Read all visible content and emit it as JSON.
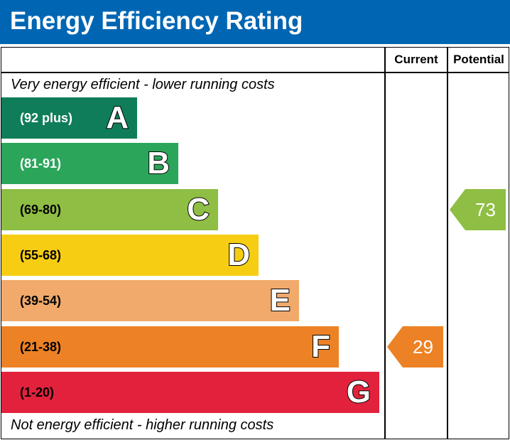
{
  "title": "Energy Efficiency Rating",
  "columns": {
    "current": "Current",
    "potential": "Potential"
  },
  "top_caption": "Very energy efficient - lower running costs",
  "bottom_caption": "Not energy efficient - higher running costs",
  "chart_data": {
    "type": "bar",
    "title": "Energy Efficiency Rating",
    "bands": [
      {
        "letter": "A",
        "range": "(92 plus)",
        "min": 92,
        "max": 100,
        "color": "#0f7d59",
        "range_color": "#ffffff"
      },
      {
        "letter": "B",
        "range": "(81-91)",
        "min": 81,
        "max": 91,
        "color": "#2ba55a",
        "range_color": "#ffffff"
      },
      {
        "letter": "C",
        "range": "(69-80)",
        "min": 69,
        "max": 80,
        "color": "#8fbe44",
        "range_color": "#000000"
      },
      {
        "letter": "D",
        "range": "(55-68)",
        "min": 55,
        "max": 68,
        "color": "#f7cd14",
        "range_color": "#000000"
      },
      {
        "letter": "E",
        "range": "(39-54)",
        "min": 39,
        "max": 54,
        "color": "#f1aa6b",
        "range_color": "#000000"
      },
      {
        "letter": "F",
        "range": "(21-38)",
        "min": 21,
        "max": 38,
        "color": "#ec8225",
        "range_color": "#000000"
      },
      {
        "letter": "G",
        "range": "(1-20)",
        "min": 1,
        "max": 20,
        "color": "#e2223c",
        "range_color": "#000000"
      }
    ],
    "current": {
      "value": 29,
      "band": "F",
      "color": "#ec8225"
    },
    "potential": {
      "value": 73,
      "band": "C",
      "color": "#8fbe44"
    }
  }
}
